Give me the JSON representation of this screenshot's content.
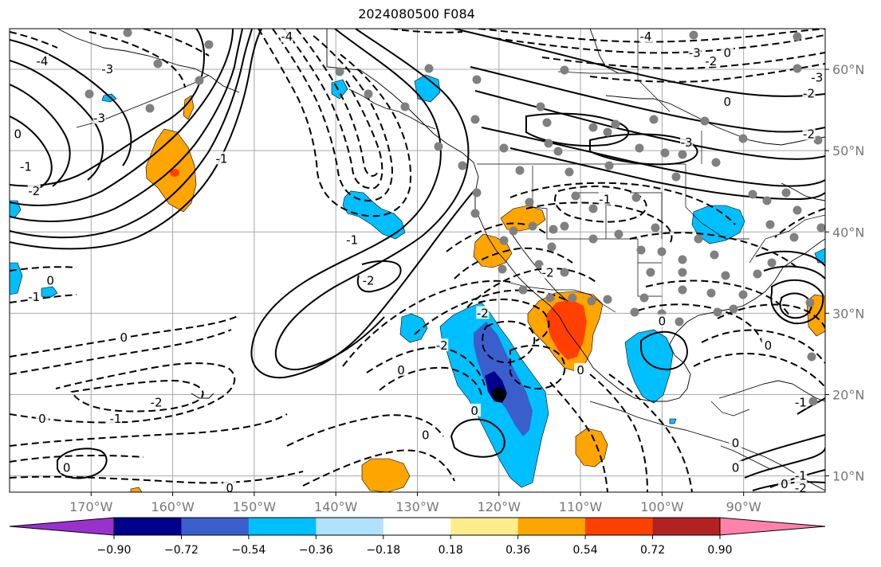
{
  "title": "2024080500 F084",
  "map": {
    "projection": "cylindrical",
    "lon_range": [
      -180,
      -80
    ],
    "lat_range": [
      8,
      65
    ],
    "lon_ticks": [
      {
        "lon": -170,
        "label": "170°W"
      },
      {
        "lon": -160,
        "label": "160°W"
      },
      {
        "lon": -150,
        "label": "150°W"
      },
      {
        "lon": -140,
        "label": "140°W"
      },
      {
        "lon": -130,
        "label": "130°W"
      },
      {
        "lon": -120,
        "label": "120°W"
      },
      {
        "lon": -110,
        "label": "110°W"
      },
      {
        "lon": -100,
        "label": "100°W"
      },
      {
        "lon": -90,
        "label": "90°W"
      }
    ],
    "lat_ticks": [
      {
        "lat": 60,
        "label": "60°N"
      },
      {
        "lat": 50,
        "label": "50°N"
      },
      {
        "lat": 40,
        "label": "40°N"
      },
      {
        "lat": 30,
        "label": "30°N"
      },
      {
        "lat": 20,
        "label": "20°N"
      },
      {
        "lat": 10,
        "label": "10°N"
      }
    ],
    "contour_labels": [
      {
        "text": "-4",
        "lon": -176,
        "lat": 61
      },
      {
        "text": "-3",
        "lon": -168,
        "lat": 60
      },
      {
        "text": "-3",
        "lon": -169,
        "lat": 54
      },
      {
        "text": "0",
        "lon": -179,
        "lat": 52
      },
      {
        "text": "-1",
        "lon": -178,
        "lat": 48
      },
      {
        "text": "-2",
        "lon": -177,
        "lat": 45
      },
      {
        "text": "-1",
        "lon": -154,
        "lat": 49
      },
      {
        "text": "-4",
        "lon": -146,
        "lat": 64
      },
      {
        "text": "-1",
        "lon": -138,
        "lat": 39
      },
      {
        "text": "-2",
        "lon": -136,
        "lat": 34
      },
      {
        "text": "-1",
        "lon": -177,
        "lat": 32
      },
      {
        "text": "0",
        "lon": -175,
        "lat": 34
      },
      {
        "text": "0",
        "lon": -166,
        "lat": 27
      },
      {
        "text": "-2",
        "lon": -162,
        "lat": 19
      },
      {
        "text": "-1",
        "lon": -167,
        "lat": 17
      },
      {
        "text": "0",
        "lon": -176,
        "lat": 17
      },
      {
        "text": "0",
        "lon": -173,
        "lat": 11
      },
      {
        "text": "0",
        "lon": -153,
        "lat": 8.5
      },
      {
        "text": "-2",
        "lon": -122,
        "lat": 30
      },
      {
        "text": "-2",
        "lon": -127,
        "lat": 26
      },
      {
        "text": "0",
        "lon": -132,
        "lat": 23
      },
      {
        "text": "0",
        "lon": -123,
        "lat": 18
      },
      {
        "text": "0",
        "lon": -129,
        "lat": 15
      },
      {
        "text": "-2",
        "lon": -114,
        "lat": 35
      },
      {
        "text": "-1",
        "lon": -107,
        "lat": 44
      },
      {
        "text": "0",
        "lon": -110,
        "lat": 23
      },
      {
        "text": "0",
        "lon": -100,
        "lat": 29
      },
      {
        "text": "-3",
        "lon": -97,
        "lat": 51
      },
      {
        "text": "-3",
        "lon": -96,
        "lat": 62
      },
      {
        "text": "-2",
        "lon": -94,
        "lat": 61
      },
      {
        "text": "0",
        "lon": -92,
        "lat": 62
      },
      {
        "text": "0",
        "lon": -92,
        "lat": 56
      },
      {
        "text": "-2",
        "lon": -82,
        "lat": 57
      },
      {
        "text": "-3",
        "lon": -81,
        "lat": 59
      },
      {
        "text": "-4",
        "lon": -102,
        "lat": 64
      },
      {
        "text": "-2",
        "lon": -82,
        "lat": 52
      },
      {
        "text": "0",
        "lon": -87,
        "lat": 26
      },
      {
        "text": "0",
        "lon": -91,
        "lat": 14
      },
      {
        "text": "0",
        "lon": -91,
        "lat": 11
      },
      {
        "text": "-1",
        "lon": -83,
        "lat": 10
      },
      {
        "text": "-1",
        "lon": -83,
        "lat": 19
      },
      {
        "text": "0",
        "lon": -85,
        "lat": 9
      },
      {
        "text": "-2",
        "lon": -83,
        "lat": 8.5
      }
    ],
    "storm_marker": {
      "lon": -120,
      "lat": 20
    }
  },
  "colorbar": {
    "ticks": [
      "−0.90",
      "−0.72",
      "−0.54",
      "−0.36",
      "−0.18",
      "0.18",
      "0.36",
      "0.54",
      "0.72",
      "0.90"
    ],
    "bin_colors": [
      "#00008b",
      "#3a5fcd",
      "#00bfff",
      "#b0e2ff",
      "#ffffff",
      "#ffec8b",
      "#ffa500",
      "#ff4000",
      "#b22222"
    ],
    "under_color": "#9932cc",
    "over_color": "#ff82ab"
  }
}
